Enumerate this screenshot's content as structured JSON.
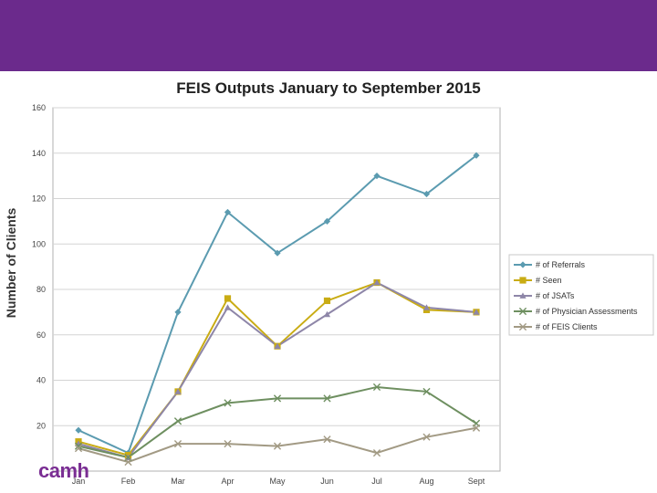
{
  "chart_data": {
    "type": "line",
    "title": "FEIS Outputs January to September 2015",
    "xlabel": "",
    "ylabel": "Number  of Clients",
    "categories": [
      "Jan",
      "Feb",
      "Mar",
      "Apr",
      "May",
      "Jun",
      "Jul",
      "Aug",
      "Sept"
    ],
    "ylim": [
      0,
      160
    ],
    "yticks": [
      20,
      40,
      60,
      80,
      100,
      120,
      140,
      160
    ],
    "grid": true,
    "legend": "right",
    "series": [
      {
        "name": "# of Referrals",
        "color": "#5b9bb0",
        "marker": "diamond",
        "values": [
          18,
          8,
          70,
          114,
          96,
          110,
          130,
          122,
          139
        ]
      },
      {
        "name": "# Seen",
        "color": "#c9ac14",
        "marker": "square",
        "values": [
          13,
          7,
          35,
          76,
          55,
          75,
          83,
          71,
          70
        ]
      },
      {
        "name": "# of JSATs",
        "color": "#8e86a8",
        "marker": "triangle",
        "values": [
          12,
          6,
          35,
          72,
          55,
          69,
          83,
          72,
          70
        ]
      },
      {
        "name": "# of Physician Assessments",
        "color": "#6e8f60",
        "marker": "x",
        "values": [
          11,
          6,
          22,
          30,
          32,
          32,
          37,
          35,
          21
        ]
      },
      {
        "name": "# of FEIS Clients",
        "color": "#a29a84",
        "marker": "x",
        "values": [
          10,
          4,
          12,
          12,
          11,
          14,
          8,
          15,
          19
        ]
      }
    ]
  },
  "logo_text": "camh"
}
